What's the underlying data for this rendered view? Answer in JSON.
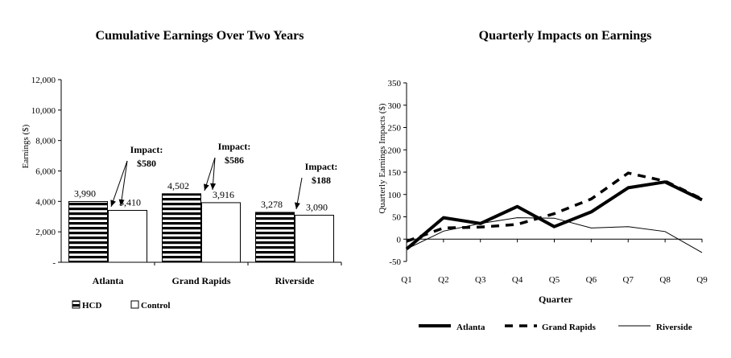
{
  "chart_data": [
    {
      "type": "bar",
      "title": "Cumulative Earnings Over Two Years",
      "xlabel": "",
      "ylabel": "Earnings ($)",
      "ylim": [
        0,
        12000
      ],
      "yticks": [
        "-",
        "2,000",
        "4,000",
        "6,000",
        "8,000",
        "10,000",
        "12,000"
      ],
      "categories": [
        "Atlanta",
        "Grand Rapids",
        "Riverside"
      ],
      "series": [
        {
          "name": "HCD",
          "values": [
            3990,
            4502,
            3278
          ],
          "labels": [
            "3,990",
            "4,502",
            "3,278"
          ],
          "pattern": "horizontal-stripes"
        },
        {
          "name": "Control",
          "values": [
            3410,
            3916,
            3090
          ],
          "labels": [
            "3,410",
            "3,916",
            "3,090"
          ],
          "pattern": "white"
        }
      ],
      "annotations": [
        {
          "line1": "Impact:",
          "line2": "$580"
        },
        {
          "line1": "Impact:",
          "line2": "$586"
        },
        {
          "line1": "Impact:",
          "line2": "$188"
        }
      ],
      "legend_position": "bottom-left",
      "grid": false
    },
    {
      "type": "line",
      "title": "Quarterly Impacts on Earnings",
      "xlabel": "Quarter",
      "ylabel": "Quarterly Earnings Impacts ($)",
      "ylim": [
        -50,
        350
      ],
      "yticks": [
        "-50",
        "0",
        "50",
        "100",
        "150",
        "200",
        "250",
        "300",
        "350"
      ],
      "categories": [
        "Q1",
        "Q2",
        "Q3",
        "Q4",
        "Q5",
        "Q6",
        "Q7",
        "Q8",
        "Q9"
      ],
      "series": [
        {
          "name": "Atlanta",
          "values": [
            -22,
            48,
            35,
            73,
            28,
            61,
            115,
            128,
            88
          ],
          "style": "thick-solid"
        },
        {
          "name": "Grand Rapids",
          "values": [
            -5,
            25,
            27,
            33,
            57,
            90,
            148,
            130,
            90
          ],
          "style": "dashed"
        },
        {
          "name": "Riverside",
          "values": [
            -22,
            18,
            35,
            48,
            47,
            25,
            28,
            17,
            -30
          ],
          "style": "thin-solid"
        }
      ],
      "legend_position": "bottom",
      "grid": false
    }
  ]
}
